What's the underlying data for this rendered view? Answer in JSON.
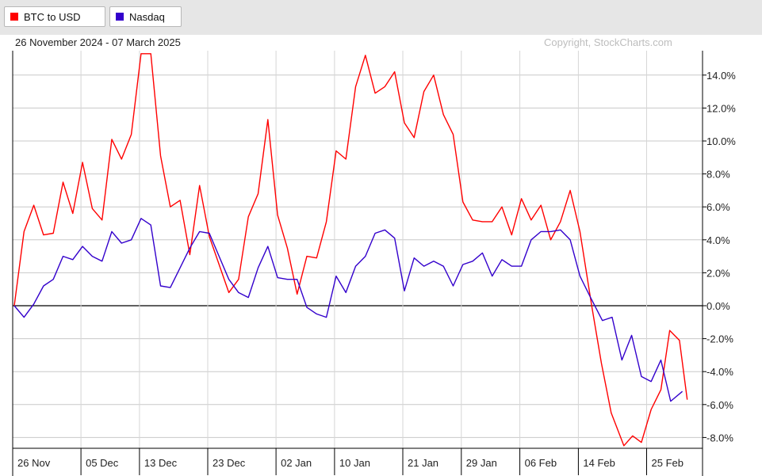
{
  "legend": {
    "btc_label": "BTC to USD",
    "nasdaq_label": "Nasdaq",
    "btc_color": "#ff0000",
    "nasdaq_color": "#3300cc"
  },
  "header": {
    "date_range": "26 November 2024 - 07 March 2025",
    "copyright": "Copyright, StockCharts.com"
  },
  "chart_data": {
    "type": "line",
    "ylim": [
      -8.8,
      15.5
    ],
    "y_ticks": [
      14,
      12,
      10,
      8,
      6,
      4,
      2,
      0,
      -2,
      -4,
      -6,
      -8
    ],
    "y_tick_labels": [
      "14.0%",
      "12.0%",
      "10.0%",
      "8.0%",
      "6.0%",
      "4.0%",
      "2.0%",
      "0.0%",
      "-2.0%",
      "-4.0%",
      "-6.0%",
      "-8.0%"
    ],
    "x_tick_labels": [
      "26 Nov",
      "05 Dec",
      "13 Dec",
      "23 Dec",
      "02 Jan",
      "10 Jan",
      "21 Jan",
      "29 Jan",
      "06 Feb",
      "14 Feb",
      "25 Feb"
    ],
    "x_tick_index": [
      0,
      7,
      13,
      20,
      27,
      33,
      40,
      46,
      52,
      58,
      65
    ],
    "grid": true,
    "y_axis_position": "right",
    "series": [
      {
        "name": "BTC to USD",
        "color": "#ff0000",
        "values": [
          0.0,
          4.5,
          6.1,
          4.3,
          4.4,
          7.5,
          5.6,
          8.7,
          5.9,
          5.2,
          10.1,
          8.9,
          10.4,
          15.3,
          15.3,
          9.1,
          6.0,
          6.4,
          3.1,
          7.3,
          4.2,
          2.5,
          0.8,
          1.6,
          5.4,
          6.8,
          11.3,
          5.5,
          3.5,
          0.7,
          3.0,
          2.9,
          5.1,
          9.4,
          8.9,
          13.3,
          15.2,
          12.9,
          13.3,
          14.2,
          11.1,
          10.2,
          13.0,
          14.0,
          11.6,
          10.4,
          6.3,
          5.2,
          5.1,
          5.1,
          6.0,
          4.3,
          6.5,
          5.2,
          6.1,
          4.0,
          5.1,
          7.0,
          4.5,
          0.0,
          -3.5,
          -6.5,
          -8.5,
          -7.9,
          -8.3,
          -6.3,
          -5.1,
          -1.5,
          -2.1,
          -5.7
        ],
        "x_index": [
          0,
          1,
          2,
          3,
          4,
          5,
          6,
          7,
          8,
          9,
          10,
          11,
          12,
          13,
          14,
          15,
          16,
          17,
          18,
          19,
          20,
          21,
          22,
          23,
          24,
          25,
          26,
          27,
          28,
          29,
          30,
          31,
          32,
          33,
          34,
          35,
          36,
          37,
          38,
          39,
          40,
          41,
          42,
          43,
          44,
          45,
          46,
          47,
          48,
          49,
          50,
          51,
          52,
          53,
          54,
          55,
          56,
          57,
          58,
          59.2,
          60.2,
          61.2,
          62.5,
          63.4,
          64.3,
          65.3,
          66.3,
          67.2,
          68.2,
          69
        ]
      },
      {
        "name": "Nasdaq",
        "color": "#3300cc",
        "values": [
          0.0,
          -0.7,
          0.1,
          1.2,
          1.6,
          3.0,
          2.8,
          3.6,
          3.0,
          2.7,
          4.5,
          3.8,
          4.0,
          5.3,
          4.9,
          1.2,
          1.1,
          2.3,
          3.5,
          4.5,
          4.4,
          3.0,
          1.6,
          0.8,
          0.5,
          2.3,
          3.6,
          1.7,
          1.6,
          1.6,
          -0.1,
          -0.5,
          -0.7,
          1.8,
          0.8,
          2.4,
          3.0,
          4.4,
          4.6,
          4.1,
          0.9,
          2.9,
          2.4,
          2.7,
          2.4,
          1.2,
          2.5,
          2.7,
          3.2,
          1.8,
          2.8,
          2.4,
          2.4,
          4.0,
          4.5,
          4.5,
          4.6,
          4.0,
          1.8,
          0.6,
          -0.9,
          -0.7,
          -3.3,
          -1.8,
          -4.3,
          -4.6,
          -3.3,
          -5.8,
          -5.2
        ],
        "x_index": [
          0,
          1,
          2,
          3,
          4,
          5,
          6,
          7,
          8,
          9,
          10,
          11,
          12,
          13,
          14,
          15,
          16,
          17,
          18,
          19,
          20,
          21,
          22,
          23,
          24,
          25,
          26,
          27,
          28,
          29,
          30,
          31,
          32,
          33,
          34,
          35,
          36,
          37,
          38,
          39,
          40,
          41,
          42,
          43,
          44,
          45,
          46,
          47,
          48,
          49,
          50,
          51,
          52,
          53,
          54,
          55,
          56,
          57,
          58,
          59,
          60.3,
          61.3,
          62.3,
          63.3,
          64.3,
          65.3,
          66.3,
          67.3,
          68.5
        ]
      }
    ]
  }
}
